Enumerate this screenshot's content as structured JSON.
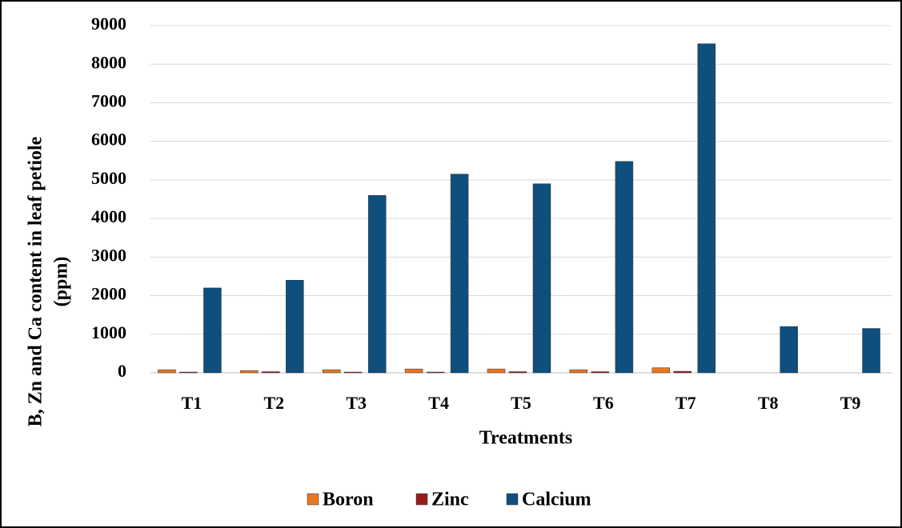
{
  "chart_data": {
    "type": "bar",
    "x_label": "Treatments",
    "y_label": [
      "B, Zn and Ca content in leaf petiole",
      "(ppm)"
    ],
    "categories": [
      "T1",
      "T2",
      "T3",
      "T4",
      "T5",
      "T6",
      "T7",
      "T8",
      "T9"
    ],
    "series": [
      {
        "name": "Boron",
        "color": "#e87722",
        "values": [
          80,
          60,
          80,
          100,
          100,
          80,
          130,
          null,
          null
        ]
      },
      {
        "name": "Zinc",
        "color": "#9b1b1b",
        "values": [
          20,
          30,
          20,
          20,
          30,
          30,
          40,
          null,
          null
        ]
      },
      {
        "name": "Calcium",
        "color": "#0e4f7e",
        "values": [
          2200,
          2400,
          4600,
          5150,
          4900,
          5480,
          8530,
          1200,
          1150
        ]
      }
    ],
    "ylim": [
      0,
      9000
    ],
    "yticks": [
      0,
      1000,
      2000,
      3000,
      4000,
      5000,
      6000,
      7000,
      8000,
      9000
    ],
    "grid": true,
    "legend": "bottom"
  }
}
